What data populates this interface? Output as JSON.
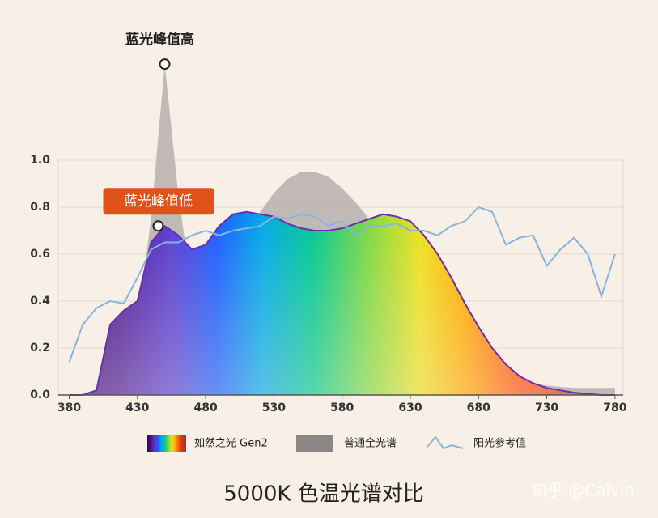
{
  "chart_data": {
    "type": "area",
    "title": "5000K 色温光谱对比",
    "watermark": "知乎 @Calvin",
    "annotations": [
      "蓝光峰值高",
      "蓝光峰值低"
    ],
    "x": [
      380,
      390,
      400,
      410,
      420,
      430,
      440,
      450,
      460,
      470,
      480,
      490,
      500,
      510,
      520,
      530,
      540,
      550,
      560,
      570,
      580,
      590,
      600,
      610,
      620,
      630,
      640,
      650,
      660,
      670,
      680,
      690,
      700,
      710,
      720,
      730,
      740,
      750,
      760,
      770,
      780
    ],
    "series": [
      {
        "name": "如然之光 Gen2",
        "color": "#6a2fb0",
        "values": [
          0,
          0,
          0.02,
          0.3,
          0.36,
          0.4,
          0.65,
          0.72,
          0.68,
          0.62,
          0.64,
          0.72,
          0.77,
          0.78,
          0.77,
          0.76,
          0.73,
          0.71,
          0.7,
          0.7,
          0.71,
          0.73,
          0.75,
          0.77,
          0.76,
          0.74,
          0.68,
          0.6,
          0.5,
          0.39,
          0.29,
          0.2,
          0.13,
          0.08,
          0.05,
          0.03,
          0.02,
          0.01,
          0.005,
          0,
          0
        ]
      },
      {
        "name": "普通全光谱",
        "color": "#b9b3af",
        "values": [
          0,
          0,
          0,
          0.05,
          0.15,
          0.3,
          0.75,
          1.41,
          0.85,
          0.45,
          0.22,
          0.25,
          0.45,
          0.65,
          0.78,
          0.86,
          0.92,
          0.95,
          0.95,
          0.93,
          0.88,
          0.82,
          0.75,
          0.68,
          0.6,
          0.5,
          0.42,
          0.34,
          0.27,
          0.2,
          0.15,
          0.11,
          0.08,
          0.06,
          0.05,
          0.04,
          0.035,
          0.03,
          0.03,
          0.03,
          0.03
        ]
      },
      {
        "name": "阳光参考值",
        "color": "#8ab4e0",
        "values": [
          0.14,
          0.3,
          0.37,
          0.4,
          0.39,
          0.5,
          0.62,
          0.65,
          0.65,
          0.68,
          0.7,
          0.68,
          0.7,
          0.71,
          0.72,
          0.76,
          0.75,
          0.77,
          0.76,
          0.72,
          0.74,
          0.68,
          0.72,
          0.72,
          0.73,
          0.7,
          0.7,
          0.68,
          0.72,
          0.74,
          0.8,
          0.78,
          0.64,
          0.67,
          0.68,
          0.55,
          0.62,
          0.67,
          0.6,
          0.42,
          0.6
        ]
      }
    ],
    "xlim": [
      372,
      786
    ],
    "ylim": [
      0,
      1
    ],
    "xticks": [
      380,
      430,
      480,
      530,
      580,
      630,
      680,
      730,
      780
    ],
    "yticks": [
      {
        "value": 0,
        "label": "0.0"
      },
      0.2,
      0.4,
      0.6,
      0.8,
      {
        "value": 1,
        "label": "1.0"
      }
    ],
    "grid": true
  }
}
